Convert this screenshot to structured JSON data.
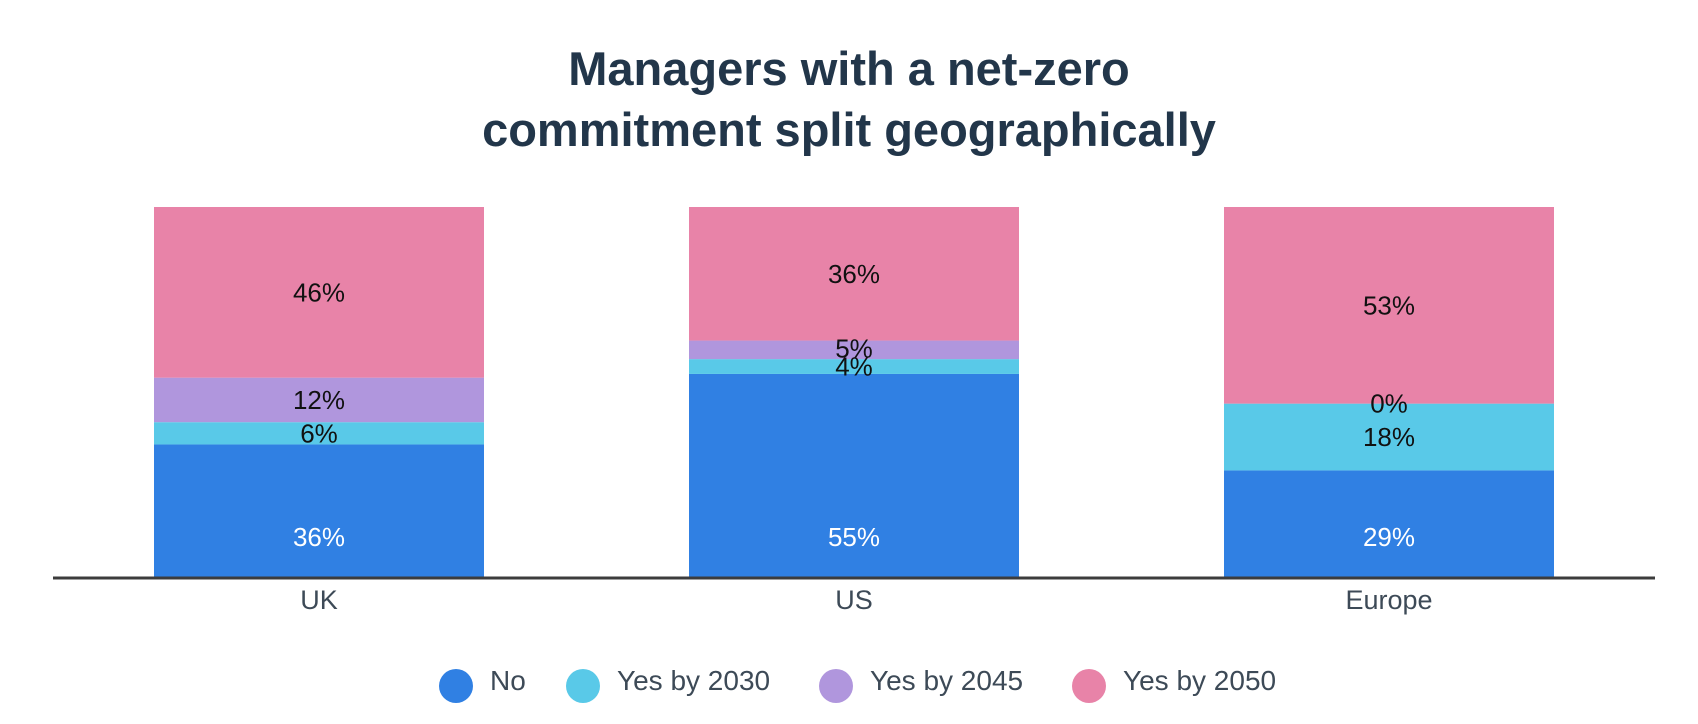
{
  "chart_data": {
    "type": "bar",
    "stacked": true,
    "title": [
      "Managers with a net-zero",
      "commitment split geographically"
    ],
    "categories": [
      "UK",
      "US",
      "Europe"
    ],
    "series": [
      {
        "name": "No",
        "color": "#3080e3",
        "values": [
          36,
          55,
          29
        ]
      },
      {
        "name": "Yes by 2030",
        "color": "#59c9e8",
        "values": [
          6,
          4,
          18
        ]
      },
      {
        "name": "Yes by 2045",
        "color": "#b096dd",
        "values": [
          12,
          5,
          0
        ]
      },
      {
        "name": "Yes by 2050",
        "color": "#e883a8",
        "values": [
          46,
          36,
          53
        ]
      }
    ],
    "data_labels": [
      [
        "36%",
        "55%",
        "29%"
      ],
      [
        "6%",
        "4%",
        "18%"
      ],
      [
        "12%",
        "5%",
        "0%"
      ],
      [
        "46%",
        "36%",
        "53%"
      ]
    ],
    "ylim": [
      0,
      100
    ],
    "legend_position": "bottom",
    "grid": false
  }
}
